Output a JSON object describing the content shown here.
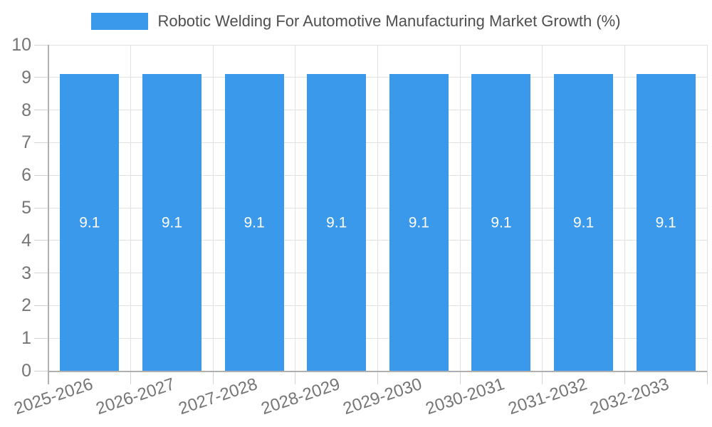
{
  "legend": {
    "label": "Robotic Welding For Automotive Manufacturing Market Growth (%)",
    "position": "top"
  },
  "chart_data": {
    "type": "bar",
    "title": "Robotic Welding For Automotive Manufacturing Market Growth (%)",
    "categories": [
      "2025-2026",
      "2026-2027",
      "2027-2028",
      "2028-2029",
      "2029-2030",
      "2030-2031",
      "2031-2032",
      "2032-2033"
    ],
    "values": [
      9.1,
      9.1,
      9.1,
      9.1,
      9.1,
      9.1,
      9.1,
      9.1
    ],
    "bar_value_labels": [
      "9.1",
      "9.1",
      "9.1",
      "9.1",
      "9.1",
      "9.1",
      "9.1",
      "9.1"
    ],
    "xlabel": "",
    "ylabel": "",
    "ylim": [
      0,
      10
    ],
    "yticks": [
      0,
      1,
      2,
      3,
      4,
      5,
      6,
      7,
      8,
      9,
      10
    ],
    "grid": true,
    "legend_position": "top",
    "x_label_rotation_deg": -18.5,
    "colors": {
      "bar": "#3B99EC",
      "bar_label": "#FFFFFF",
      "gridline": "#E2E2E2",
      "tick": "#D2D2D2",
      "axis_line": "#B0B0B0",
      "tick_label": "#757575",
      "title": "#4F4F4F",
      "background": "#FFFFFF"
    }
  }
}
